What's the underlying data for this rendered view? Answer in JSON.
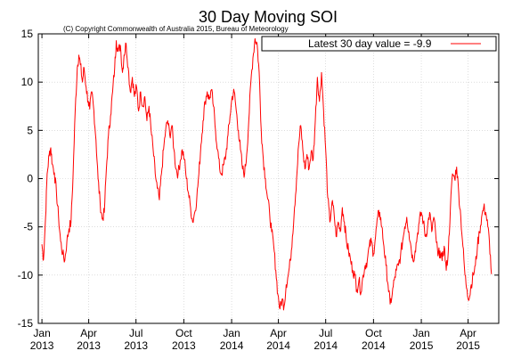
{
  "chart_data": {
    "type": "line",
    "title": "30 Day Moving SOI",
    "subtitle": "(C) Copyright Commonwealth of Australia 2015, Bureau of Meteorology",
    "xlabel": "",
    "ylabel": "",
    "ylim": [
      -15,
      15
    ],
    "yticks": [
      -15,
      -10,
      -5,
      0,
      5,
      10,
      15
    ],
    "xlim": [
      "2012-12-25",
      "2015-05-30"
    ],
    "xticks": [
      {
        "date": "2013-01-01",
        "month": "Jan",
        "year": "2013"
      },
      {
        "date": "2013-04-01",
        "month": "Apr",
        "year": "2013"
      },
      {
        "date": "2013-07-01",
        "month": "Jul",
        "year": "2013"
      },
      {
        "date": "2013-10-01",
        "month": "Oct",
        "year": "2013"
      },
      {
        "date": "2014-01-01",
        "month": "Jan",
        "year": "2014"
      },
      {
        "date": "2014-04-01",
        "month": "Apr",
        "year": "2014"
      },
      {
        "date": "2014-07-01",
        "month": "Jul",
        "year": "2014"
      },
      {
        "date": "2014-10-01",
        "month": "Oct",
        "year": "2014"
      },
      {
        "date": "2015-01-01",
        "month": "Jan",
        "year": "2015"
      },
      {
        "date": "2015-04-01",
        "month": "Apr",
        "year": "2015"
      }
    ],
    "grid": true,
    "legend": {
      "label": "Latest 30 day value = -9.9",
      "placement": "top-right"
    },
    "series": [
      {
        "color": "#ff0000",
        "points": [
          [
            "2013-01-01",
            -6.8
          ],
          [
            "2013-01-04",
            -8.4
          ],
          [
            "2013-01-08",
            -4.0
          ],
          [
            "2013-01-11",
            0.5
          ],
          [
            "2013-01-15",
            2.5
          ],
          [
            "2013-01-18",
            3.2
          ],
          [
            "2013-01-21",
            1.5
          ],
          [
            "2013-01-25",
            0.6
          ],
          [
            "2013-01-29",
            -1.5
          ],
          [
            "2013-02-02",
            -4.0
          ],
          [
            "2013-02-06",
            -6.5
          ],
          [
            "2013-02-10",
            -7.8
          ],
          [
            "2013-02-14",
            -8.5
          ],
          [
            "2013-02-18",
            -6.5
          ],
          [
            "2013-02-22",
            -5.2
          ],
          [
            "2013-02-26",
            -4.5
          ],
          [
            "2013-03-02",
            0.5
          ],
          [
            "2013-03-06",
            7.0
          ],
          [
            "2013-03-10",
            11.5
          ],
          [
            "2013-03-13",
            12.8
          ],
          [
            "2013-03-16",
            11.8
          ],
          [
            "2013-03-20",
            10.0
          ],
          [
            "2013-03-23",
            11.5
          ],
          [
            "2013-03-27",
            9.5
          ],
          [
            "2013-03-31",
            8.0
          ],
          [
            "2013-04-03",
            7.2
          ],
          [
            "2013-04-07",
            9.0
          ],
          [
            "2013-04-11",
            7.0
          ],
          [
            "2013-04-15",
            4.0
          ],
          [
            "2013-04-19",
            0.0
          ],
          [
            "2013-04-23",
            -2.5
          ],
          [
            "2013-04-27",
            -4.2
          ],
          [
            "2013-05-01",
            -3.5
          ],
          [
            "2013-05-05",
            1.0
          ],
          [
            "2013-05-09",
            4.5
          ],
          [
            "2013-05-13",
            6.5
          ],
          [
            "2013-05-17",
            9.0
          ],
          [
            "2013-05-21",
            11.5
          ],
          [
            "2013-05-24",
            14.3
          ],
          [
            "2013-05-28",
            13.2
          ],
          [
            "2013-06-01",
            13.8
          ],
          [
            "2013-06-05",
            11.0
          ],
          [
            "2013-06-08",
            12.8
          ],
          [
            "2013-06-12",
            14.0
          ],
          [
            "2013-06-16",
            11.5
          ],
          [
            "2013-06-20",
            9.0
          ],
          [
            "2013-06-24",
            10.5
          ],
          [
            "2013-06-28",
            8.5
          ],
          [
            "2013-07-02",
            9.5
          ],
          [
            "2013-07-06",
            7.0
          ],
          [
            "2013-07-10",
            9.0
          ],
          [
            "2013-07-14",
            7.5
          ],
          [
            "2013-07-18",
            8.5
          ],
          [
            "2013-07-22",
            6.0
          ],
          [
            "2013-07-26",
            7.5
          ],
          [
            "2013-07-30",
            5.0
          ],
          [
            "2013-08-03",
            3.0
          ],
          [
            "2013-08-07",
            0.5
          ],
          [
            "2013-08-11",
            -1.0
          ],
          [
            "2013-08-15",
            -2.2
          ],
          [
            "2013-08-19",
            0.5
          ],
          [
            "2013-08-23",
            3.0
          ],
          [
            "2013-08-27",
            5.0
          ],
          [
            "2013-08-31",
            6.0
          ],
          [
            "2013-09-04",
            4.5
          ],
          [
            "2013-09-08",
            5.5
          ],
          [
            "2013-09-12",
            3.0
          ],
          [
            "2013-09-16",
            1.0
          ],
          [
            "2013-09-20",
            0.5
          ],
          [
            "2013-09-24",
            1.8
          ],
          [
            "2013-09-28",
            3.0
          ],
          [
            "2013-10-02",
            2.0
          ],
          [
            "2013-10-06",
            0.0
          ],
          [
            "2013-10-10",
            -1.5
          ],
          [
            "2013-10-14",
            -3.0
          ],
          [
            "2013-10-18",
            -4.5
          ],
          [
            "2013-10-22",
            -3.5
          ],
          [
            "2013-10-26",
            -2.0
          ],
          [
            "2013-10-30",
            0.5
          ],
          [
            "2013-11-03",
            3.5
          ],
          [
            "2013-11-07",
            6.0
          ],
          [
            "2013-11-11",
            8.0
          ],
          [
            "2013-11-15",
            9.0
          ],
          [
            "2013-11-19",
            8.2
          ],
          [
            "2013-11-23",
            9.2
          ],
          [
            "2013-11-27",
            7.5
          ],
          [
            "2013-12-01",
            5.0
          ],
          [
            "2013-12-05",
            3.0
          ],
          [
            "2013-12-09",
            1.0
          ],
          [
            "2013-12-13",
            0.5
          ],
          [
            "2013-12-17",
            1.5
          ],
          [
            "2013-12-21",
            2.5
          ],
          [
            "2013-12-25",
            4.5
          ],
          [
            "2013-12-29",
            6.5
          ],
          [
            "2014-01-02",
            8.5
          ],
          [
            "2014-01-06",
            9.0
          ],
          [
            "2014-01-10",
            7.0
          ],
          [
            "2014-01-14",
            5.0
          ],
          [
            "2014-01-18",
            3.0
          ],
          [
            "2014-01-22",
            1.0
          ],
          [
            "2014-01-26",
            0.5
          ],
          [
            "2014-01-30",
            2.5
          ],
          [
            "2014-02-03",
            6.0
          ],
          [
            "2014-02-07",
            10.0
          ],
          [
            "2014-02-11",
            12.5
          ],
          [
            "2014-02-15",
            14.5
          ],
          [
            "2014-02-19",
            14.0
          ],
          [
            "2014-02-23",
            11.0
          ],
          [
            "2014-02-27",
            5.0
          ],
          [
            "2014-03-03",
            2.0
          ],
          [
            "2014-03-07",
            0.0
          ],
          [
            "2014-03-11",
            -2.0
          ],
          [
            "2014-03-15",
            -3.5
          ],
          [
            "2014-03-19",
            -5.5
          ],
          [
            "2014-03-23",
            -7.0
          ],
          [
            "2014-03-27",
            -9.5
          ],
          [
            "2014-03-31",
            -12.0
          ],
          [
            "2014-04-04",
            -13.5
          ],
          [
            "2014-04-08",
            -12.5
          ],
          [
            "2014-04-12",
            -13.2
          ],
          [
            "2014-04-16",
            -11.0
          ],
          [
            "2014-04-20",
            -10.0
          ],
          [
            "2014-04-24",
            -8.5
          ],
          [
            "2014-04-28",
            -6.0
          ],
          [
            "2014-05-02",
            -3.0
          ],
          [
            "2014-05-06",
            0.0
          ],
          [
            "2014-05-10",
            3.5
          ],
          [
            "2014-05-14",
            5.5
          ],
          [
            "2014-05-18",
            3.0
          ],
          [
            "2014-05-22",
            1.0
          ],
          [
            "2014-05-26",
            2.5
          ],
          [
            "2014-05-30",
            1.0
          ],
          [
            "2014-06-03",
            2.8
          ],
          [
            "2014-06-07",
            2.0
          ],
          [
            "2014-06-11",
            6.0
          ],
          [
            "2014-06-15",
            10.5
          ],
          [
            "2014-06-19",
            8.0
          ],
          [
            "2014-06-23",
            11.0
          ],
          [
            "2014-06-27",
            7.0
          ],
          [
            "2014-07-01",
            3.0
          ],
          [
            "2014-07-05",
            -2.0
          ],
          [
            "2014-07-09",
            -4.5
          ],
          [
            "2014-07-13",
            -2.5
          ],
          [
            "2014-07-17",
            -3.5
          ],
          [
            "2014-07-21",
            -6.0
          ],
          [
            "2014-07-25",
            -4.5
          ],
          [
            "2014-07-29",
            -5.5
          ],
          [
            "2014-08-02",
            -3.0
          ],
          [
            "2014-08-06",
            -4.5
          ],
          [
            "2014-08-10",
            -6.5
          ],
          [
            "2014-08-14",
            -7.5
          ],
          [
            "2014-08-18",
            -8.5
          ],
          [
            "2014-08-22",
            -9.5
          ],
          [
            "2014-08-26",
            -10.0
          ],
          [
            "2014-08-30",
            -11.5
          ],
          [
            "2014-09-03",
            -10.5
          ],
          [
            "2014-09-07",
            -11.8
          ],
          [
            "2014-09-11",
            -10.0
          ],
          [
            "2014-09-15",
            -9.0
          ],
          [
            "2014-09-19",
            -8.5
          ],
          [
            "2014-09-23",
            -7.0
          ],
          [
            "2014-09-27",
            -6.5
          ],
          [
            "2014-10-01",
            -7.8
          ],
          [
            "2014-10-05",
            -6.0
          ],
          [
            "2014-10-09",
            -4.0
          ],
          [
            "2014-10-13",
            -3.5
          ],
          [
            "2014-10-17",
            -5.0
          ],
          [
            "2014-10-21",
            -7.0
          ],
          [
            "2014-10-25",
            -9.0
          ],
          [
            "2014-10-29",
            -11.0
          ],
          [
            "2014-11-02",
            -13.0
          ],
          [
            "2014-11-06",
            -12.0
          ],
          [
            "2014-11-10",
            -10.5
          ],
          [
            "2014-11-14",
            -9.5
          ],
          [
            "2014-11-18",
            -9.0
          ],
          [
            "2014-11-22",
            -8.0
          ],
          [
            "2014-11-26",
            -6.5
          ],
          [
            "2014-11-30",
            -5.0
          ],
          [
            "2014-12-04",
            -4.0
          ],
          [
            "2014-12-08",
            -5.5
          ],
          [
            "2014-12-12",
            -7.0
          ],
          [
            "2014-12-16",
            -8.5
          ],
          [
            "2014-12-20",
            -7.5
          ],
          [
            "2014-12-24",
            -6.0
          ],
          [
            "2014-12-28",
            -4.5
          ],
          [
            "2015-01-01",
            -3.5
          ],
          [
            "2015-01-05",
            -4.5
          ],
          [
            "2015-01-09",
            -6.0
          ],
          [
            "2015-01-13",
            -5.0
          ],
          [
            "2015-01-17",
            -3.5
          ],
          [
            "2015-01-21",
            -5.5
          ],
          [
            "2015-01-25",
            -4.0
          ],
          [
            "2015-01-29",
            -6.0
          ],
          [
            "2015-02-02",
            -8.0
          ],
          [
            "2015-02-06",
            -7.5
          ],
          [
            "2015-02-10",
            -8.5
          ],
          [
            "2015-02-14",
            -7.0
          ],
          [
            "2015-02-18",
            -9.5
          ],
          [
            "2015-02-22",
            -7.5
          ],
          [
            "2015-02-26",
            -3.0
          ],
          [
            "2015-03-02",
            0.5
          ],
          [
            "2015-03-06",
            0.0
          ],
          [
            "2015-03-10",
            1.2
          ],
          [
            "2015-03-14",
            -1.5
          ],
          [
            "2015-03-18",
            -4.0
          ],
          [
            "2015-03-22",
            -7.0
          ],
          [
            "2015-03-26",
            -10.0
          ],
          [
            "2015-03-30",
            -11.5
          ],
          [
            "2015-04-03",
            -12.5
          ],
          [
            "2015-04-07",
            -11.0
          ],
          [
            "2015-04-11",
            -10.0
          ],
          [
            "2015-04-15",
            -9.0
          ],
          [
            "2015-04-19",
            -7.0
          ],
          [
            "2015-04-23",
            -5.5
          ],
          [
            "2015-04-27",
            -4.0
          ],
          [
            "2015-05-01",
            -3.0
          ],
          [
            "2015-05-05",
            -3.5
          ],
          [
            "2015-05-09",
            -5.0
          ],
          [
            "2015-05-12",
            -6.5
          ],
          [
            "2015-05-16",
            -9.9
          ]
        ]
      }
    ]
  }
}
